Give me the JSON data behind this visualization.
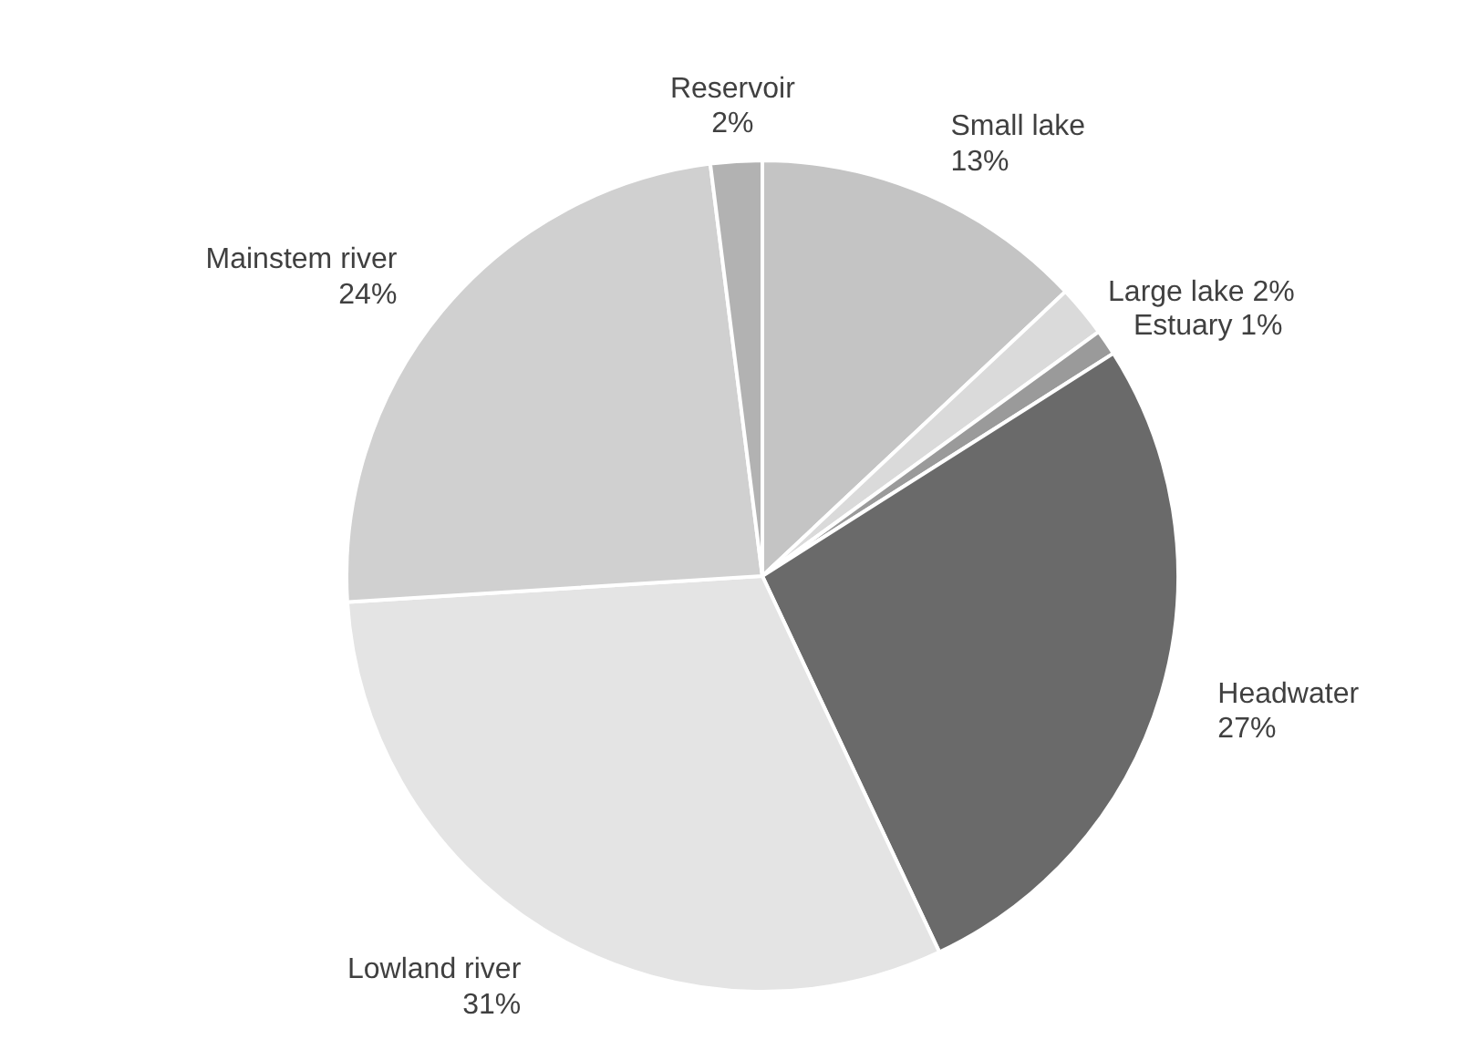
{
  "chart_data": {
    "type": "pie",
    "categories": [
      "Small lake",
      "Large lake",
      "Estuary",
      "Headwater",
      "Lowland river",
      "Mainstem river",
      "Reservoir"
    ],
    "values": [
      13,
      2,
      1,
      27,
      31,
      24,
      2
    ],
    "value_labels": [
      "13%",
      "2%",
      "1%",
      "27%",
      "31%",
      "24%",
      "2%"
    ],
    "colors": [
      "#c4c4c4",
      "#dadada",
      "#9a9a9a",
      "#6a6a6a",
      "#e4e4e4",
      "#d0d0d0",
      "#b2b2b2"
    ]
  }
}
